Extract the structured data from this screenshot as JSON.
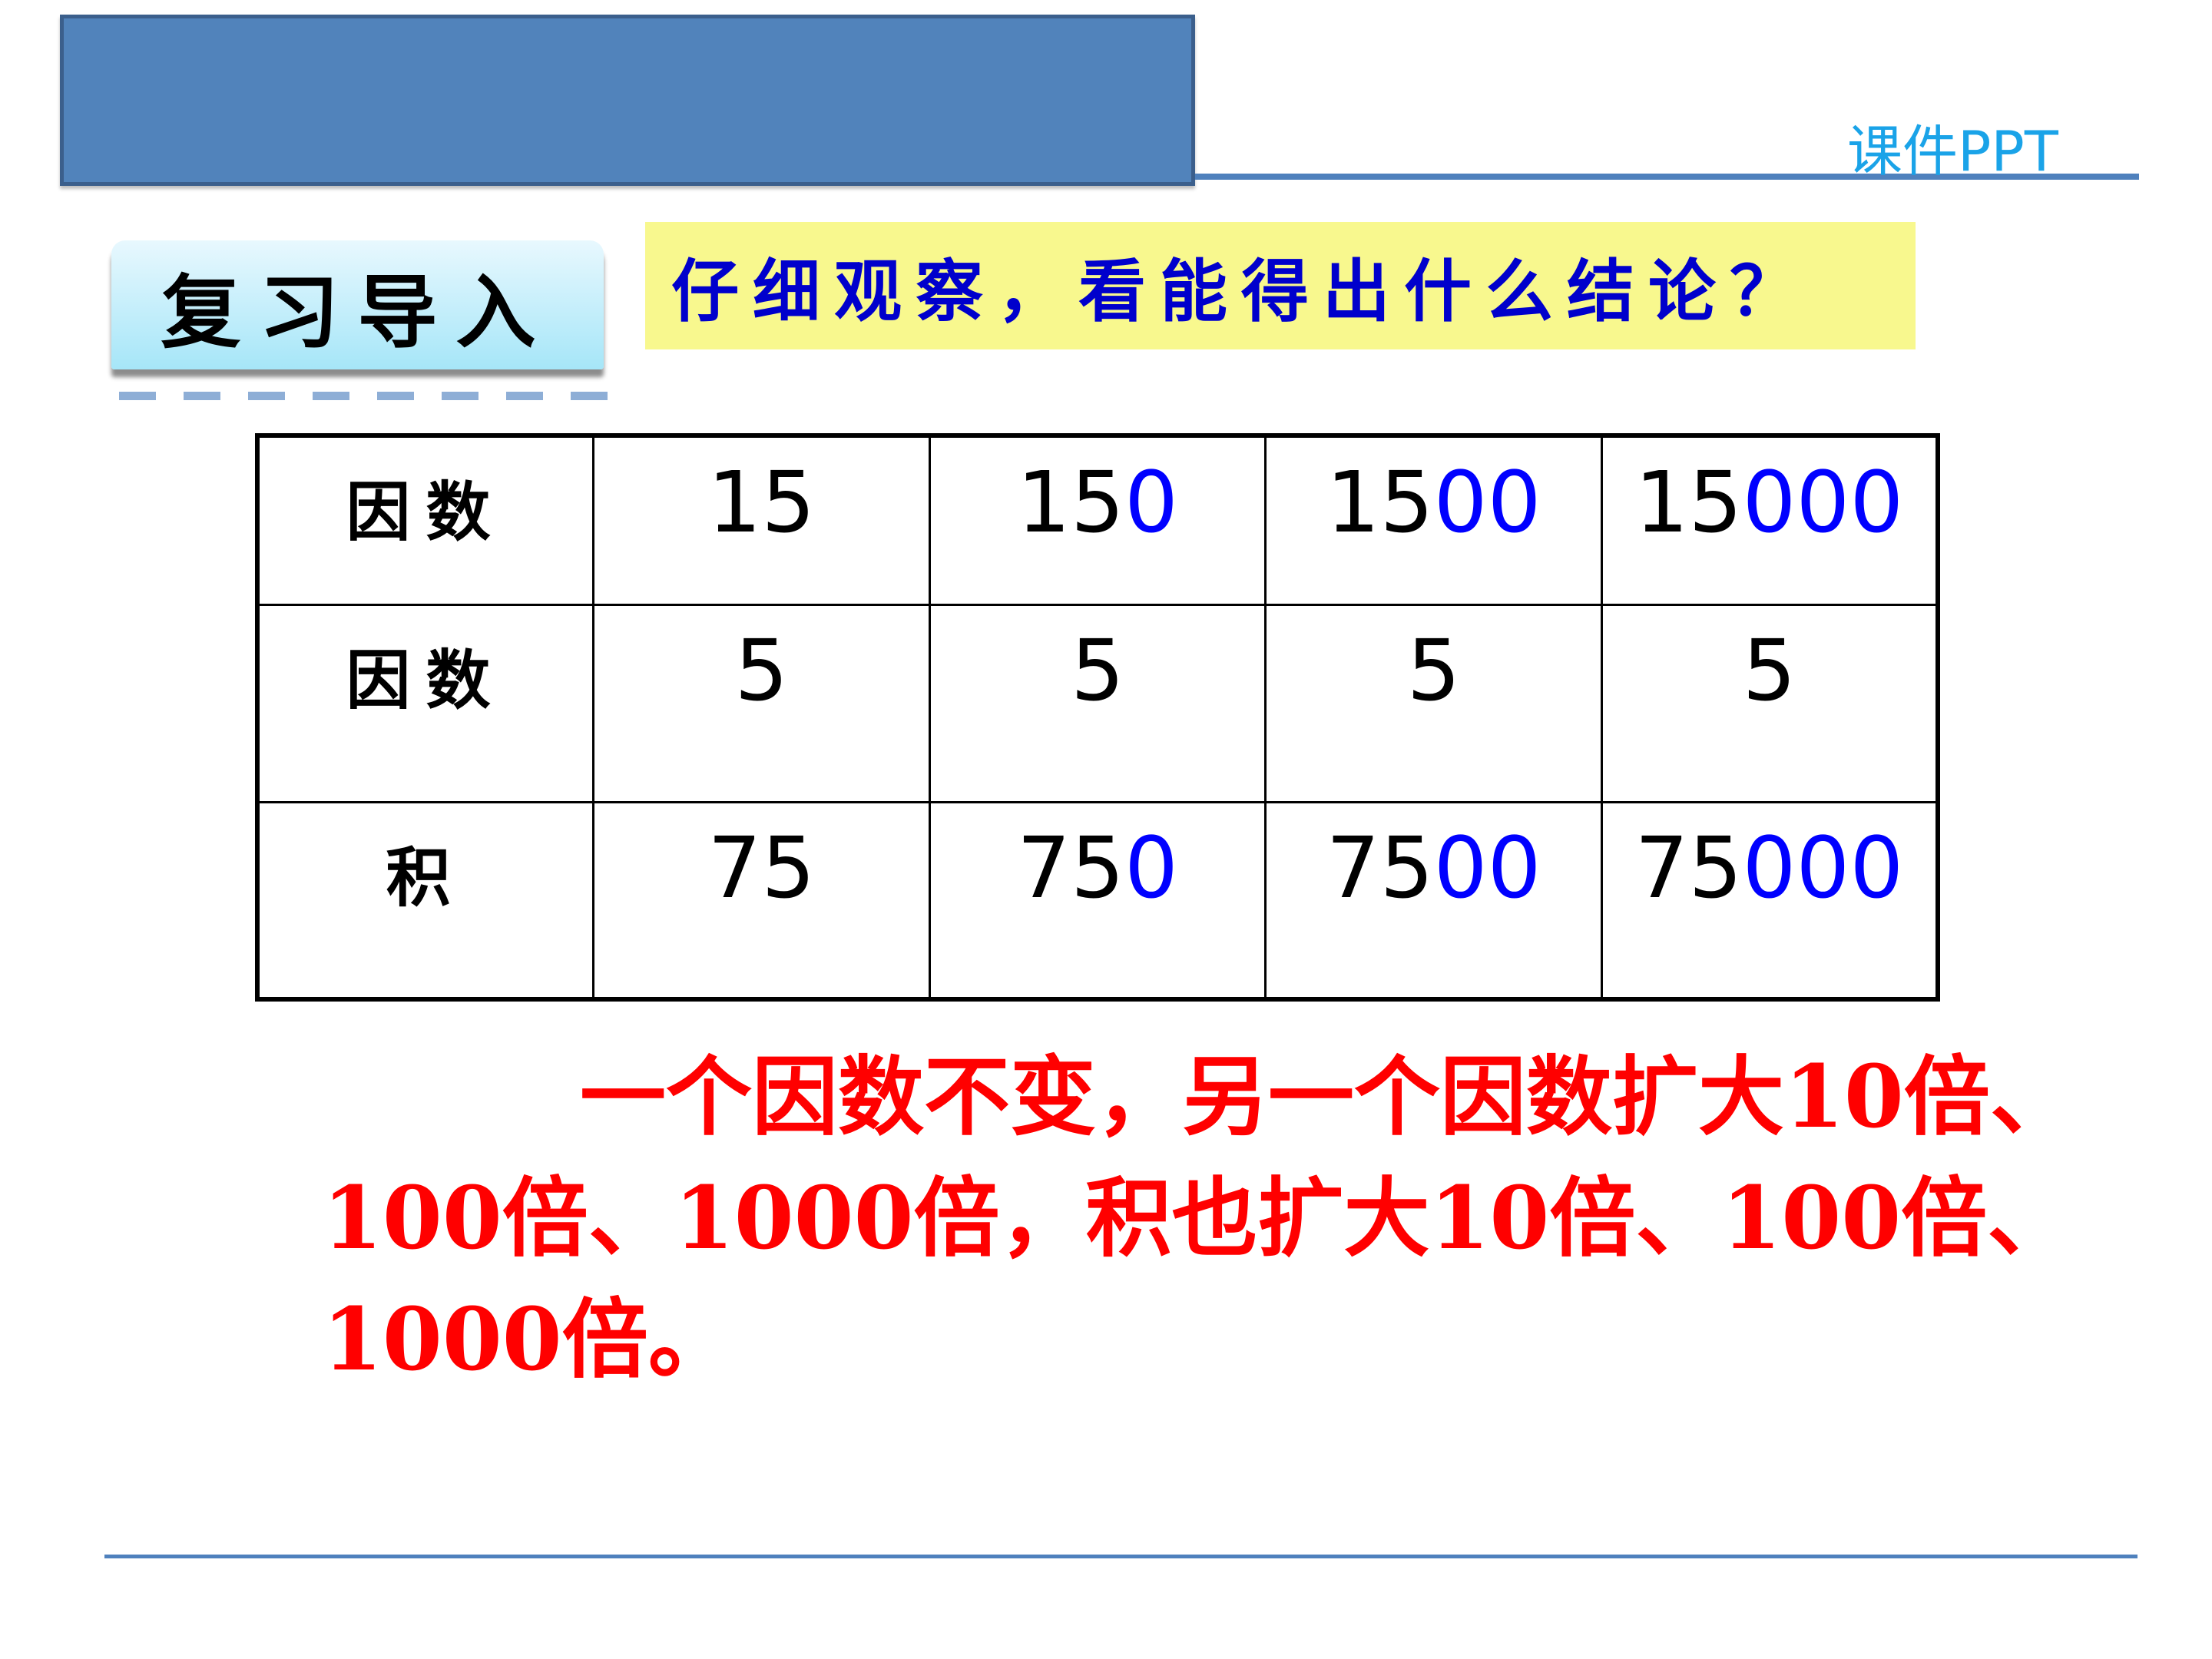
{
  "header": {
    "brand": "课件PPT"
  },
  "badge": {
    "label": "复习导入"
  },
  "question": "仔细观察，看能得出什么结论？",
  "table": {
    "rows": [
      {
        "label": "因数",
        "cells": [
          {
            "black": "15",
            "blue": ""
          },
          {
            "black": "15",
            "blue": "0"
          },
          {
            "black": "15",
            "blue": "00"
          },
          {
            "black": "15",
            "blue": "000"
          }
        ]
      },
      {
        "label": "因数",
        "cells": [
          {
            "black": "5",
            "blue": ""
          },
          {
            "black": "5",
            "blue": ""
          },
          {
            "black": "5",
            "blue": ""
          },
          {
            "black": "5",
            "blue": ""
          }
        ]
      },
      {
        "label": "积",
        "cells": [
          {
            "black": "75",
            "blue": ""
          },
          {
            "black": "75",
            "blue": "0"
          },
          {
            "black": "75",
            "blue": "00"
          },
          {
            "black": "75",
            "blue": "000"
          }
        ]
      }
    ]
  },
  "conclusion": "一个因数不变，另一个因数扩大10倍、100倍、1000倍，积也扩大10倍、100倍、1000倍。",
  "colors": {
    "banner": "#5183bb",
    "question_text": "#0000cc",
    "highlight": "#f8f88e",
    "zeros": "#0000ff",
    "conclusion": "#ff0000"
  }
}
